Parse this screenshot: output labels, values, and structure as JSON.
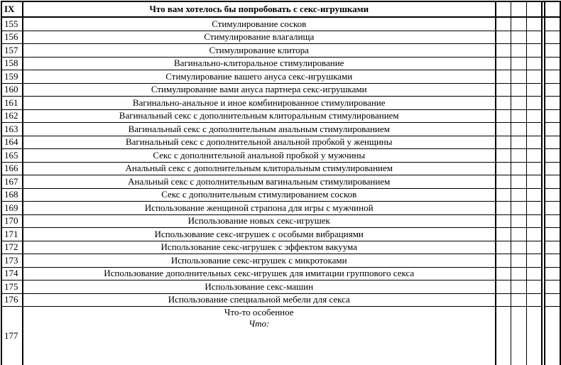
{
  "header": {
    "num": "IX",
    "title": "Что вам хотелось бы попробовать с секс-игрушками"
  },
  "rows": [
    {
      "n": "155",
      "t": "Стимулирование сосков"
    },
    {
      "n": "156",
      "t": "Стимулирование влагалища"
    },
    {
      "n": "157",
      "t": "Стимулирование клитора"
    },
    {
      "n": "158",
      "t": "Вагинально-клиторальное стимулирование"
    },
    {
      "n": "159",
      "t": "Стимулирование вашего ануса секс-игрушками"
    },
    {
      "n": "160",
      "t": "Стимулирование вами ануса партнера секс-игрушками"
    },
    {
      "n": "161",
      "t": "Вагинально-анальное и иное комбинированное стимулирование"
    },
    {
      "n": "162",
      "t": "Вагинальный секс с дополнительным клиторальным стимулированием"
    },
    {
      "n": "163",
      "t": "Вагинальный секс с дополнительным анальным стимулированием"
    },
    {
      "n": "164",
      "t": "Вагинальный секс с дополнительной анальной пробкой у женщины"
    },
    {
      "n": "165",
      "t": "Секс с дополнительной анальной пробкой у мужчины"
    },
    {
      "n": "166",
      "t": "Анальный секс с дополнительным клиторальным стимулированием"
    },
    {
      "n": "167",
      "t": "Анальный секс с дополнительным вагинальным стимулированием"
    },
    {
      "n": "168",
      "t": "Секс с дополнительным стимулированием сосков"
    },
    {
      "n": "169",
      "t": "Использование женщиной страпона для игры с мужчиной"
    },
    {
      "n": "170",
      "t": "Использование новых секс-игрушек"
    },
    {
      "n": "171",
      "t": "Использование секс-игрушек с особыми вибрациями"
    },
    {
      "n": "172",
      "t": "Использование секс-игрушек с эффектом вакуума"
    },
    {
      "n": "173",
      "t": "Использование секс-игрушек с микротоками"
    },
    {
      "n": "174",
      "t": "Использование дополнительных секс-игрушек для имитации группового секса"
    },
    {
      "n": "175",
      "t": "Использование секс-машин"
    },
    {
      "n": "176",
      "t": "Использование специальной мебели для секса"
    }
  ],
  "last": {
    "n": "177",
    "t": "Что-то особенное",
    "what": "Что:"
  }
}
